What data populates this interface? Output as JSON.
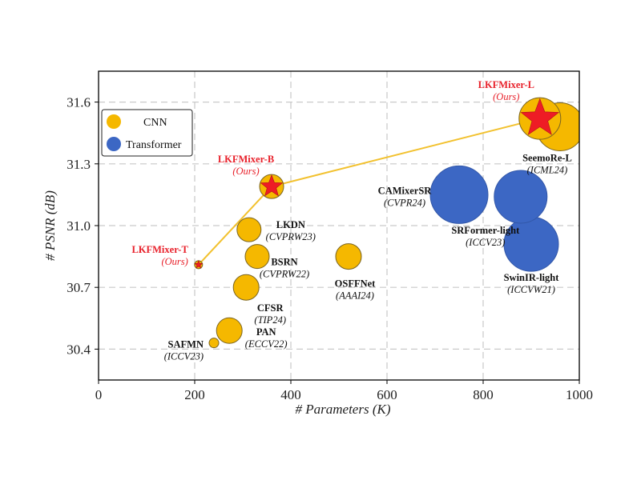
{
  "chart_data": {
    "type": "scatter",
    "xlabel": "# Parameters (K)",
    "ylabel": "# PSNR (dB)",
    "xlim": [
      0,
      1000
    ],
    "ylim": [
      30.25,
      31.75
    ],
    "xticks": [
      0,
      200,
      400,
      600,
      800,
      1000
    ],
    "yticks": [
      30.4,
      30.7,
      31.0,
      31.3,
      31.6
    ],
    "grid": true,
    "legend_position": "top-left",
    "legend": [
      {
        "label": "CNN",
        "color": "#f5b800"
      },
      {
        "label": "Transformer",
        "color": "#3c67c4"
      }
    ],
    "colors": {
      "cnn": "#f5b800",
      "transformer": "#3c67c4",
      "ours_star": "#ee1c25",
      "ours_text": "#e8212b",
      "connector": "#f2c12e"
    },
    "points": [
      {
        "name": "SAFMN",
        "venue": "(ICCV23)",
        "x": 240,
        "y": 30.43,
        "type": "CNN",
        "ours": false
      },
      {
        "name": "PAN",
        "venue": "(ECCV22)",
        "x": 272,
        "y": 30.49,
        "type": "CNN",
        "ours": false
      },
      {
        "name": "CFSR",
        "venue": "(TIP24)",
        "x": 307,
        "y": 30.7,
        "type": "CNN",
        "ours": false
      },
      {
        "name": "LKDN",
        "venue": "(CVPRW23)",
        "x": 313,
        "y": 30.98,
        "type": "CNN",
        "ours": false
      },
      {
        "name": "BSRN",
        "venue": "(CVPRW22)",
        "x": 330,
        "y": 30.85,
        "type": "CNN",
        "ours": false
      },
      {
        "name": "OSFFNet",
        "venue": "(AAAI24)",
        "x": 520,
        "y": 30.85,
        "type": "CNN",
        "ours": false
      },
      {
        "name": "SeemoRe-L",
        "venue": "(ICML24)",
        "x": 960,
        "y": 31.48,
        "type": "CNN",
        "ours": false
      },
      {
        "name": "CAMixerSR",
        "venue": "(CVPR24)",
        "x": 750,
        "y": 31.15,
        "type": "Transformer",
        "ours": false
      },
      {
        "name": "SRFormer-light",
        "venue": "(ICCV23)",
        "x": 878,
        "y": 31.14,
        "type": "Transformer",
        "ours": false
      },
      {
        "name": "SwinIR-light",
        "venue": "(ICCVW21)",
        "x": 900,
        "y": 30.91,
        "type": "Transformer",
        "ours": false
      },
      {
        "name": "LKFMixer-T",
        "venue": "(Ours)",
        "x": 208,
        "y": 30.81,
        "type": "CNN",
        "ours": true
      },
      {
        "name": "LKFMixer-B",
        "venue": "(Ours)",
        "x": 360,
        "y": 31.19,
        "type": "CNN",
        "ours": true
      },
      {
        "name": "LKFMixer-L",
        "venue": "(Ours)",
        "x": 918,
        "y": 31.52,
        "type": "CNN",
        "ours": true
      }
    ],
    "connector_series": [
      "LKFMixer-T",
      "LKFMixer-B",
      "LKFMixer-L"
    ]
  }
}
